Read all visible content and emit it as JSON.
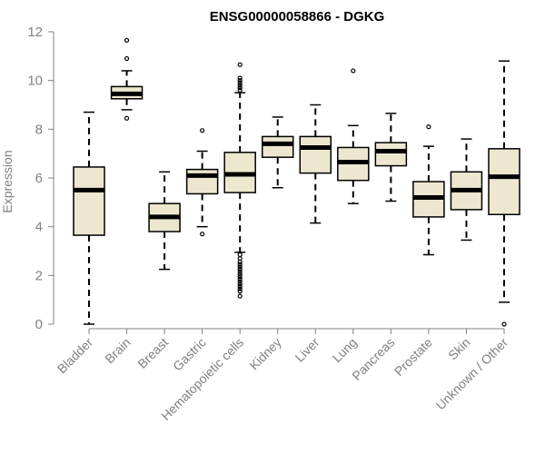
{
  "chart_data": {
    "type": "boxplot",
    "title": "ENSG00000058866 - DGKG",
    "xlabel": "",
    "ylabel": "Expression",
    "ylim": [
      0,
      12
    ],
    "yticks": [
      0,
      2,
      4,
      6,
      8,
      10,
      12
    ],
    "box_fill": "#ede7cf",
    "categories": [
      "Bladder",
      "Brain",
      "Breast",
      "Gastric",
      "Hematopoietic cells",
      "Kidney",
      "Liver",
      "Lung",
      "Pancreas",
      "Prostate",
      "Skin",
      "Unknown / Other"
    ],
    "boxes": [
      {
        "name": "Bladder",
        "whisker_low": 0.0,
        "q1": 3.65,
        "median": 5.5,
        "q3": 6.45,
        "whisker_high": 8.7,
        "outliers": []
      },
      {
        "name": "Brain",
        "whisker_low": 8.8,
        "q1": 9.25,
        "median": 9.45,
        "q3": 9.75,
        "whisker_high": 10.4,
        "outliers": [
          11.65,
          10.9,
          8.45
        ]
      },
      {
        "name": "Breast",
        "whisker_low": 2.25,
        "q1": 3.8,
        "median": 4.4,
        "q3": 4.95,
        "whisker_high": 6.25,
        "outliers": []
      },
      {
        "name": "Gastric",
        "whisker_low": 4.0,
        "q1": 5.35,
        "median": 6.1,
        "q3": 6.35,
        "whisker_high": 7.1,
        "outliers": [
          7.95,
          3.7
        ]
      },
      {
        "name": "Hematopoietic cells",
        "whisker_low": 2.95,
        "q1": 5.4,
        "median": 6.15,
        "q3": 7.05,
        "whisker_high": 9.5,
        "outliers": [
          10.65,
          10.1,
          10.0,
          9.9,
          9.8,
          9.7,
          9.6,
          2.85,
          2.7,
          2.55,
          2.45,
          2.35,
          2.25,
          2.15,
          2.05,
          1.95,
          1.85,
          1.75,
          1.65,
          1.55,
          1.45,
          1.35,
          1.15
        ]
      },
      {
        "name": "Kidney",
        "whisker_low": 5.6,
        "q1": 6.85,
        "median": 7.4,
        "q3": 7.7,
        "whisker_high": 8.5,
        "outliers": []
      },
      {
        "name": "Liver",
        "whisker_low": 4.15,
        "q1": 6.2,
        "median": 7.25,
        "q3": 7.7,
        "whisker_high": 9.0,
        "outliers": []
      },
      {
        "name": "Lung",
        "whisker_low": 4.95,
        "q1": 5.9,
        "median": 6.65,
        "q3": 7.25,
        "whisker_high": 8.15,
        "outliers": [
          10.4
        ]
      },
      {
        "name": "Pancreas",
        "whisker_low": 5.05,
        "q1": 6.5,
        "median": 7.1,
        "q3": 7.45,
        "whisker_high": 8.65,
        "outliers": []
      },
      {
        "name": "Prostate",
        "whisker_low": 2.85,
        "q1": 4.4,
        "median": 5.2,
        "q3": 5.85,
        "whisker_high": 7.3,
        "outliers": [
          8.1
        ]
      },
      {
        "name": "Skin",
        "whisker_low": 3.45,
        "q1": 4.7,
        "median": 5.5,
        "q3": 6.25,
        "whisker_high": 7.6,
        "outliers": []
      },
      {
        "name": "Unknown / Other",
        "whisker_low": 0.9,
        "q1": 4.5,
        "median": 6.05,
        "q3": 7.2,
        "whisker_high": 10.8,
        "outliers": [
          0.0
        ]
      }
    ]
  }
}
